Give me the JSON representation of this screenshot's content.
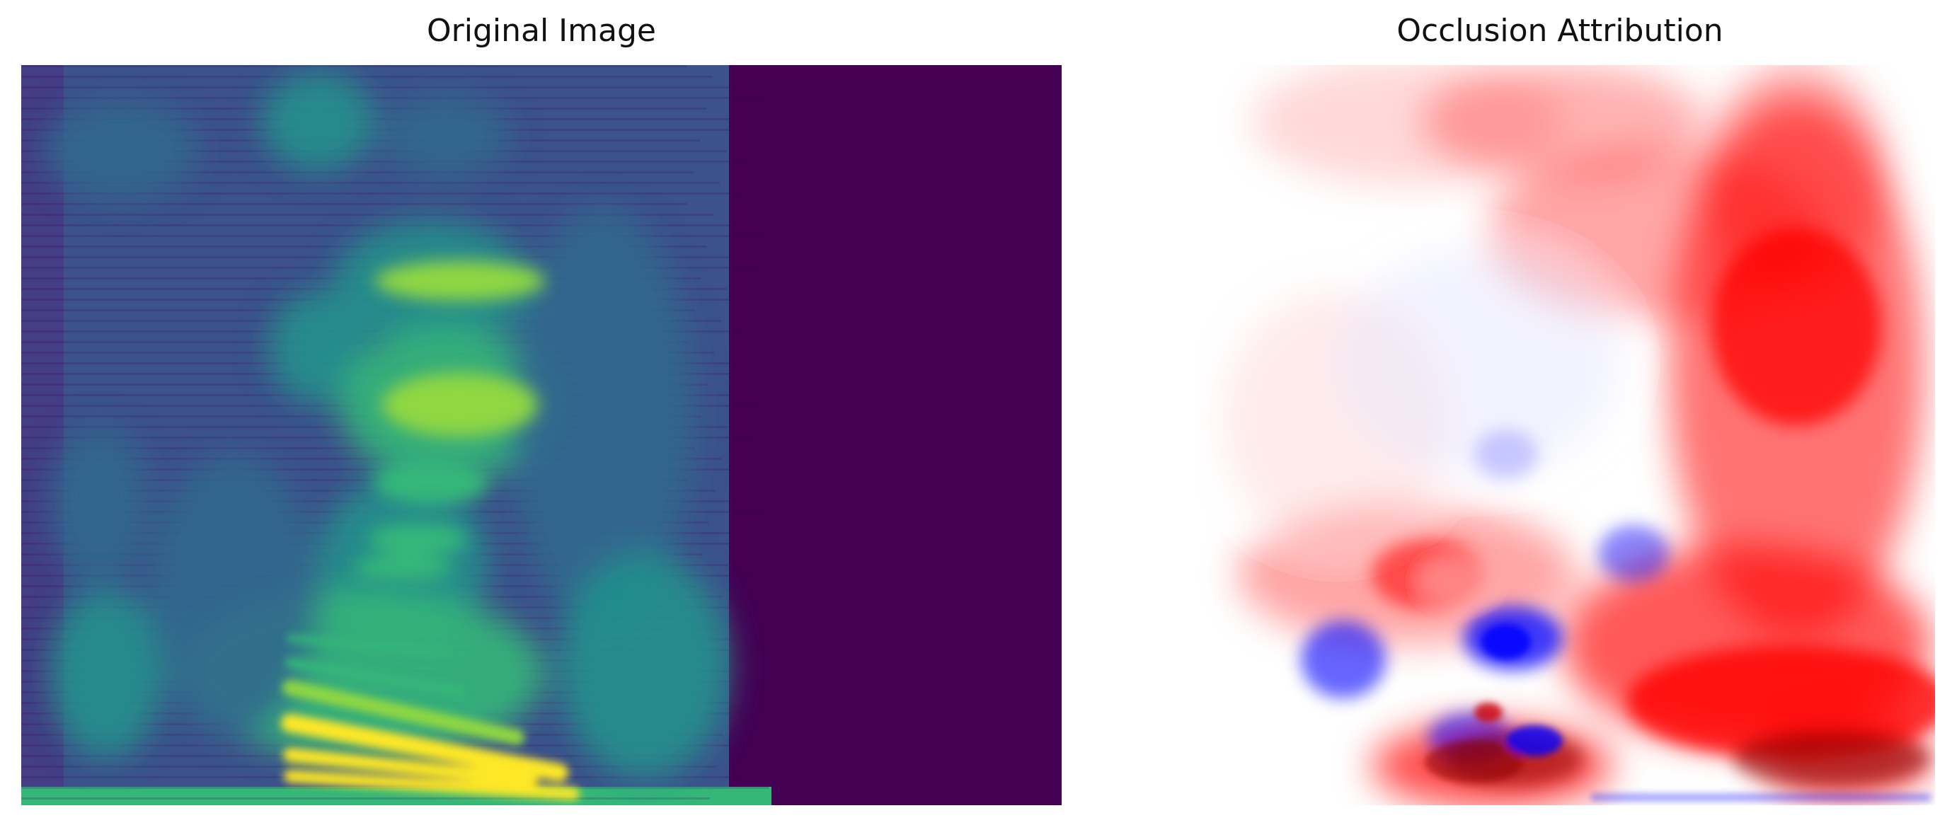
{
  "figure": {
    "panels": [
      {
        "title": "Original Image",
        "image_kind": "spectrogram",
        "colormap": "viridis",
        "axes_visible": false
      },
      {
        "title": "Occlusion Attribution",
        "image_kind": "attribution heatmap",
        "colormap": "bwr",
        "axes_visible": false
      }
    ]
  },
  "colors": {
    "viridis_dark": "#440154",
    "viridis_blue": "#31688e",
    "viridis_teal": "#21918c",
    "viridis_green": "#35b779",
    "viridis_lime": "#90d743",
    "viridis_yellow": "#fde725",
    "attribution_positive": "#ff0000",
    "attribution_strong_positive": "#8b0000",
    "attribution_negative": "#0000ff"
  }
}
